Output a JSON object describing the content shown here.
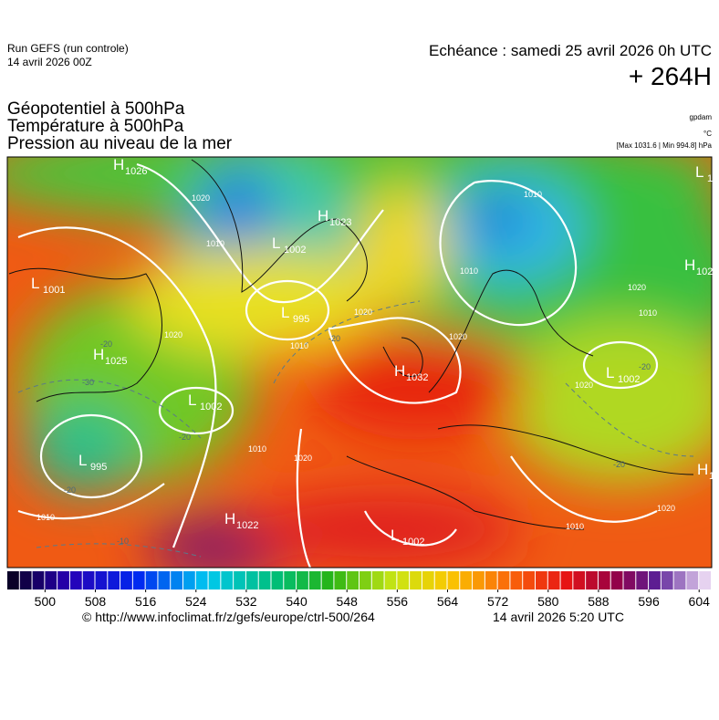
{
  "header": {
    "run": "Run GEFS (run controle)",
    "run_date": "14 avril 2026 00Z",
    "echeance": "Echéance : samedi 25 avril 2026 0h UTC",
    "lead": "+ 264H"
  },
  "layers": [
    "Géopotentiel à 500hPa",
    "Température à 500hPa",
    "Pression au niveau de la mer"
  ],
  "units": {
    "geopotential": "gpdam",
    "temperature": "°C",
    "pressure": "[Max 1031.6 | Min 994.8] hPa"
  },
  "centers": [
    {
      "kind": "H",
      "value": "1026"
    },
    {
      "kind": "H",
      "value": "1023"
    },
    {
      "kind": "L",
      "value": "1002"
    },
    {
      "kind": "L",
      "value": "995"
    },
    {
      "kind": "L",
      "value": "1001"
    },
    {
      "kind": "H",
      "value": "1025"
    },
    {
      "kind": "L",
      "value": "1002"
    },
    {
      "kind": "L",
      "value": "995"
    },
    {
      "kind": "H",
      "value": "1032"
    },
    {
      "kind": "H",
      "value": "1022"
    },
    {
      "kind": "L",
      "value": "1002"
    },
    {
      "kind": "L",
      "value": "1002"
    },
    {
      "kind": "H",
      "value": "102"
    },
    {
      "kind": "L",
      "value": "10"
    },
    {
      "kind": "H",
      "value": "102"
    }
  ],
  "contour_labels": [
    "1020",
    "1010",
    "1020",
    "1010",
    "1020",
    "1020",
    "1010",
    "1020",
    "1010",
    "1020",
    "1020",
    "1010",
    "1010",
    "1010",
    "1020",
    "1010",
    "-20",
    "-30",
    "-20",
    "-20",
    "-20",
    "-10",
    "-20",
    "-20"
  ],
  "colorbar": {
    "range": [
      494,
      606
    ],
    "ticks": [
      500,
      508,
      516,
      524,
      532,
      540,
      548,
      556,
      564,
      572,
      580,
      588,
      596,
      604
    ]
  },
  "footer": {
    "source": "© http://www.infoclimat.fr/z/gefs/europe/ctrl-500/264",
    "issued": "14 avril 2026  5:20 UTC"
  }
}
